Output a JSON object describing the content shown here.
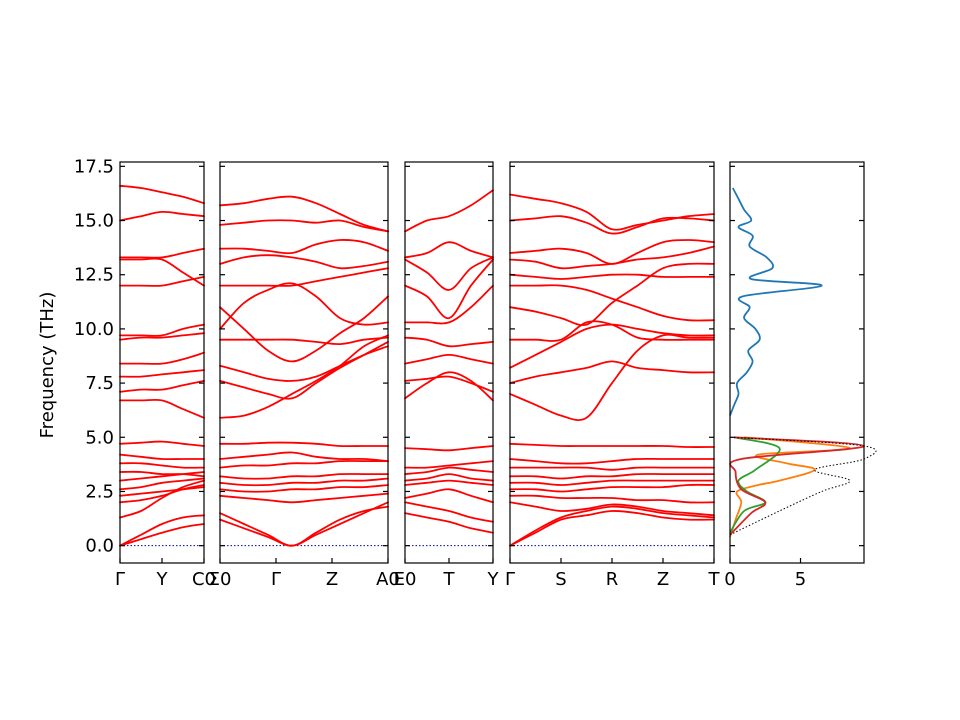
{
  "chart_data": {
    "type": "line",
    "title": "",
    "ylabel": "Frequency (THz)",
    "ylim": [
      -0.8,
      17.7
    ],
    "yticks": [
      "0.0",
      "2.5",
      "5.0",
      "7.5",
      "10.0",
      "12.5",
      "15.0",
      "17.5"
    ],
    "ytick_values": [
      0,
      2.5,
      5,
      7.5,
      10,
      12.5,
      15,
      17.5
    ],
    "band_color": "#ff0000",
    "zero_line_color": "#0000aa",
    "band_panels": [
      {
        "path_labels": [
          "Γ",
          "Y",
          "C0"
        ],
        "bands": [
          [
            0,
            0.3,
            0.6,
            0.85,
            1.0
          ],
          [
            0,
            0.5,
            1.0,
            1.3,
            1.4
          ],
          [
            1.3,
            1.6,
            2.2,
            2.7,
            3.0
          ],
          [
            2.0,
            2.1,
            2.3,
            2.6,
            2.8
          ],
          [
            2.3,
            2.4,
            2.5,
            2.6,
            2.7
          ],
          [
            2.6,
            2.7,
            2.9,
            3.0,
            3.1
          ],
          [
            3.0,
            3.1,
            3.2,
            3.3,
            3.4
          ],
          [
            3.4,
            3.4,
            3.3,
            3.3,
            3.2
          ],
          [
            3.8,
            3.8,
            3.7,
            3.6,
            3.6
          ],
          [
            4.2,
            4.1,
            4.0,
            4.0,
            4.0
          ],
          [
            4.7,
            4.75,
            4.8,
            4.7,
            4.6
          ],
          [
            6.7,
            6.7,
            6.7,
            6.3,
            5.9
          ],
          [
            7.1,
            7.2,
            7.2,
            7.4,
            7.6
          ],
          [
            7.8,
            7.8,
            7.9,
            8.0,
            8.1
          ],
          [
            8.4,
            8.4,
            8.4,
            8.6,
            8.9
          ],
          [
            9.5,
            9.6,
            9.6,
            9.7,
            9.8
          ],
          [
            9.7,
            9.7,
            9.7,
            10.0,
            10.2
          ],
          [
            12.0,
            12.0,
            12.0,
            12.2,
            12.4
          ],
          [
            13.2,
            13.2,
            13.2,
            12.6,
            12.0
          ],
          [
            13.3,
            13.3,
            13.3,
            13.5,
            13.7
          ],
          [
            15.0,
            15.2,
            15.4,
            15.3,
            15.2
          ],
          [
            16.6,
            16.5,
            16.3,
            16.1,
            15.8
          ]
        ]
      },
      {
        "path_labels": [
          "Σ0",
          "Γ",
          "Z",
          "A0"
        ],
        "bands": [
          [
            1.5,
            1.0,
            0.5,
            0,
            0.6,
            1.2,
            1.6,
            1.8
          ],
          [
            1.2,
            0.8,
            0.4,
            0,
            0.5,
            1.0,
            1.5,
            2.0
          ],
          [
            2.3,
            2.2,
            2.1,
            2.0,
            2.1,
            2.2,
            2.3,
            2.4
          ],
          [
            2.6,
            2.5,
            2.5,
            2.6,
            2.6,
            2.7,
            2.7,
            2.8
          ],
          [
            2.9,
            2.8,
            2.8,
            2.9,
            2.9,
            3.0,
            3.0,
            3.1
          ],
          [
            3.2,
            3.1,
            3.1,
            3.2,
            3.2,
            3.3,
            3.3,
            3.3
          ],
          [
            3.6,
            3.7,
            3.7,
            3.8,
            3.8,
            3.9,
            3.9,
            3.9
          ],
          [
            4.0,
            4.1,
            4.2,
            4.3,
            4.1,
            4.0,
            4.0,
            3.9
          ],
          [
            4.7,
            4.7,
            4.75,
            4.75,
            4.7,
            4.6,
            4.6,
            4.6
          ],
          [
            5.9,
            6.0,
            6.4,
            7.0,
            7.6,
            8.3,
            9.2,
            9.7
          ],
          [
            7.6,
            7.3,
            7.0,
            6.8,
            7.5,
            8.2,
            8.8,
            9.4
          ],
          [
            8.3,
            8.0,
            7.7,
            7.6,
            7.8,
            8.3,
            8.8,
            9.2
          ],
          [
            9.5,
            9.5,
            9.5,
            9.5,
            9.4,
            9.3,
            9.5,
            9.6
          ],
          [
            11.0,
            10.0,
            9.0,
            8.5,
            9.0,
            9.8,
            10.5,
            11.5
          ],
          [
            12.0,
            12.0,
            12.0,
            12.0,
            12.2,
            12.4,
            12.6,
            12.8
          ],
          [
            10.0,
            11.2,
            11.8,
            12.1,
            11.5,
            10.5,
            10.2,
            10.3
          ],
          [
            13.0,
            13.3,
            13.4,
            13.3,
            13.1,
            12.8,
            12.9,
            13.1
          ],
          [
            13.7,
            13.7,
            13.6,
            13.5,
            13.9,
            14.1,
            14.0,
            13.6
          ],
          [
            14.8,
            14.9,
            15.0,
            15.0,
            14.9,
            15.0,
            14.7,
            14.5
          ],
          [
            15.7,
            15.8,
            16.0,
            16.1,
            15.8,
            15.3,
            14.8,
            14.5
          ]
        ]
      },
      {
        "path_labels": [
          "E0",
          "T",
          "Y"
        ],
        "bands": [
          [
            1.5,
            1.3,
            1.1,
            0.8,
            0.6
          ],
          [
            2.0,
            1.8,
            1.6,
            1.3,
            1.1
          ],
          [
            2.2,
            2.4,
            2.6,
            2.3,
            2.0
          ],
          [
            2.8,
            2.9,
            3.0,
            2.9,
            2.8
          ],
          [
            3.0,
            3.1,
            3.3,
            3.1,
            3.0
          ],
          [
            3.3,
            3.4,
            3.6,
            3.5,
            3.4
          ],
          [
            3.6,
            3.6,
            3.7,
            3.8,
            3.9
          ],
          [
            4.5,
            4.45,
            4.4,
            4.5,
            4.6
          ],
          [
            6.8,
            7.5,
            8.0,
            7.6,
            6.7
          ],
          [
            7.6,
            7.7,
            7.8,
            7.5,
            7.1
          ],
          [
            8.4,
            8.6,
            8.8,
            8.6,
            8.4
          ],
          [
            9.6,
            9.5,
            9.2,
            9.3,
            9.4
          ],
          [
            10.3,
            10.3,
            10.3,
            11.0,
            12.0
          ],
          [
            12.0,
            11.5,
            10.5,
            12.0,
            13.2
          ],
          [
            13.2,
            12.6,
            11.8,
            12.8,
            13.3
          ],
          [
            13.3,
            13.5,
            14.0,
            13.6,
            13.3
          ],
          [
            14.5,
            15.0,
            15.2,
            15.7,
            16.4
          ]
        ]
      },
      {
        "path_labels": [
          "Γ",
          "S",
          "R",
          "Z",
          "T"
        ],
        "bands": [
          [
            0,
            0.7,
            1.3,
            1.6,
            1.8,
            1.7,
            1.5,
            1.4,
            1.3
          ],
          [
            0,
            0.6,
            1.2,
            1.4,
            1.6,
            1.5,
            1.3,
            1.2,
            1.2
          ],
          [
            2.0,
            1.8,
            1.6,
            1.7,
            1.9,
            1.8,
            1.6,
            1.5,
            1.4
          ],
          [
            2.3,
            2.3,
            2.2,
            2.2,
            2.2,
            2.1,
            2.1,
            2.0,
            2.0
          ],
          [
            2.6,
            2.6,
            2.5,
            2.6,
            2.7,
            2.7,
            2.7,
            2.8,
            2.8
          ],
          [
            2.9,
            2.9,
            2.8,
            2.9,
            3.0,
            3.0,
            3.0,
            3.0,
            3.0
          ],
          [
            3.2,
            3.2,
            3.1,
            3.2,
            3.2,
            3.3,
            3.3,
            3.3,
            3.3
          ],
          [
            3.6,
            3.6,
            3.6,
            3.6,
            3.5,
            3.6,
            3.6,
            3.6,
            3.6
          ],
          [
            4.0,
            3.9,
            3.8,
            3.8,
            3.9,
            4.0,
            4.0,
            4.0,
            4.0
          ],
          [
            4.7,
            4.65,
            4.6,
            4.6,
            4.6,
            4.6,
            4.6,
            4.55,
            4.55
          ],
          [
            7.0,
            6.5,
            6.0,
            5.9,
            7.5,
            9.0,
            9.7,
            9.6,
            9.6
          ],
          [
            7.5,
            7.8,
            8.0,
            8.2,
            8.5,
            8.2,
            8.1,
            8.0,
            8.0
          ],
          [
            8.2,
            8.8,
            9.4,
            10.0,
            10.2,
            10.0,
            9.8,
            9.7,
            9.7
          ],
          [
            9.5,
            9.5,
            9.5,
            10.3,
            10.2,
            9.6,
            9.5,
            9.5,
            9.5
          ],
          [
            11.0,
            10.8,
            10.5,
            10.2,
            11.2,
            12.0,
            12.8,
            13.0,
            13.0
          ],
          [
            12.0,
            12.0,
            12.0,
            11.8,
            11.4,
            11.0,
            10.6,
            10.4,
            10.4
          ],
          [
            12.5,
            12.4,
            12.3,
            12.4,
            12.5,
            12.5,
            12.4,
            12.4,
            12.4
          ],
          [
            13.2,
            13.1,
            12.8,
            12.9,
            13.0,
            13.2,
            13.3,
            13.5,
            13.8
          ],
          [
            13.5,
            13.6,
            13.7,
            13.5,
            13.0,
            13.5,
            14.0,
            14.1,
            14.0
          ],
          [
            15.0,
            15.1,
            15.2,
            14.9,
            14.4,
            14.7,
            15.1,
            15.1,
            15.0
          ],
          [
            16.2,
            16.0,
            15.8,
            15.4,
            14.6,
            14.8,
            15.0,
            15.2,
            15.3
          ]
        ]
      }
    ],
    "dos_panel": {
      "xticks": [
        "0",
        "5"
      ],
      "xtick_values": [
        0,
        5
      ],
      "xlim": [
        0,
        9.5
      ],
      "series": [
        {
          "color": "#1f77b4",
          "points": [
            [
              0,
              6.0
            ],
            [
              0.3,
              6.5
            ],
            [
              0.6,
              7.0
            ],
            [
              0.5,
              7.5
            ],
            [
              1.2,
              8.0
            ],
            [
              1.6,
              8.5
            ],
            [
              1.3,
              9.0
            ],
            [
              2.1,
              9.5
            ],
            [
              1.8,
              10.0
            ],
            [
              1.0,
              10.5
            ],
            [
              1.4,
              11.0
            ],
            [
              0.9,
              11.5
            ],
            [
              6.5,
              12.0
            ],
            [
              1.5,
              12.3
            ],
            [
              3.0,
              12.8
            ],
            [
              2.6,
              13.3
            ],
            [
              1.4,
              13.8
            ],
            [
              1.6,
              14.3
            ],
            [
              0.6,
              14.7
            ],
            [
              1.5,
              15.0
            ],
            [
              1.0,
              15.5
            ],
            [
              0.6,
              16.0
            ],
            [
              0.2,
              16.5
            ]
          ]
        },
        {
          "color": "#ff7f0e",
          "points": [
            [
              0,
              0.4
            ],
            [
              0.4,
              1.2
            ],
            [
              0.8,
              2.0
            ],
            [
              0.5,
              2.5
            ],
            [
              2.0,
              2.8
            ],
            [
              3.5,
              3.0
            ],
            [
              6.0,
              3.5
            ],
            [
              4.0,
              3.8
            ],
            [
              2.0,
              4.2
            ],
            [
              8.5,
              4.5
            ],
            [
              1.0,
              5.0
            ]
          ]
        },
        {
          "color": "#2ca02c",
          "points": [
            [
              0,
              0.6
            ],
            [
              1.0,
              1.6
            ],
            [
              2.5,
              2.0
            ],
            [
              1.2,
              2.5
            ],
            [
              0.6,
              3.0
            ],
            [
              1.8,
              3.5
            ],
            [
              3.5,
              4.5
            ],
            [
              0.3,
              5.0
            ]
          ]
        },
        {
          "color": "#d62728",
          "points": [
            [
              0,
              0.5
            ],
            [
              1.5,
              1.5
            ],
            [
              2.5,
              2.0
            ],
            [
              0.8,
              2.6
            ],
            [
              0.4,
              3.4
            ],
            [
              0.8,
              4.0
            ],
            [
              9.5,
              4.6
            ],
            [
              0.3,
              5.0
            ]
          ]
        }
      ],
      "total": {
        "color": "#000000",
        "points": [
          [
            0,
            0.5
          ],
          [
            3.5,
            1.6
          ],
          [
            6.5,
            2.5
          ],
          [
            8.5,
            3.0
          ],
          [
            6.0,
            3.5
          ],
          [
            9.5,
            4.0
          ],
          [
            9.5,
            4.6
          ],
          [
            0,
            5.0
          ]
        ]
      }
    }
  }
}
